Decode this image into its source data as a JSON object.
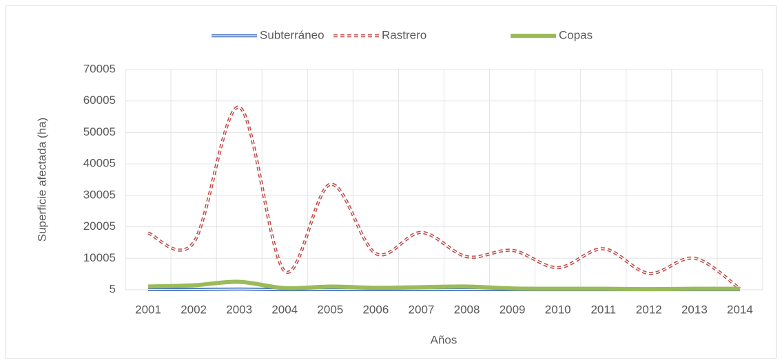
{
  "chart_data": {
    "type": "line",
    "y_label": "Superficie afectada (ha)",
    "x_label": "Años",
    "categories": [
      "2001",
      "2002",
      "2003",
      "2004",
      "2005",
      "2006",
      "2007",
      "2008",
      "2009",
      "2010",
      "2011",
      "2012",
      "2013",
      "2014"
    ],
    "series": [
      {
        "name": "Subterráneo",
        "color": "#4472c4",
        "style": "double",
        "values": [
          50,
          80,
          200,
          40,
          60,
          50,
          60,
          70,
          40,
          30,
          30,
          30,
          30,
          20
        ]
      },
      {
        "name": "Rastrero",
        "color": "#c0504d",
        "style": "double-dashed",
        "values": [
          18000,
          15000,
          58000,
          5900,
          33500,
          11500,
          18200,
          10500,
          12500,
          7000,
          13000,
          5200,
          10000,
          300
        ]
      },
      {
        "name": "Copas",
        "color": "#9bbb59",
        "style": "solid",
        "values": [
          1000,
          1400,
          2500,
          500,
          1000,
          600,
          800,
          1000,
          400,
          300,
          300,
          200,
          300,
          300
        ]
      }
    ],
    "ylim": [
      5,
      70005
    ],
    "yticks": [
      5,
      10005,
      20005,
      30005,
      40005,
      50005,
      60005,
      70005
    ],
    "grid": true,
    "legend": "top"
  }
}
